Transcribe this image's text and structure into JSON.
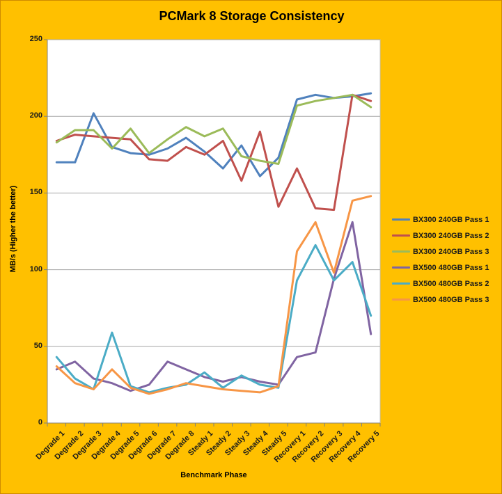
{
  "title": "PCMark 8 Storage Consistency",
  "colors": {
    "background": "#FFC000",
    "plot_background": "#FFFFFF",
    "gridline": "#A6A6A6",
    "axis": "#808080",
    "plot_border": "#BFBFBF",
    "text": "#1a1a1a"
  },
  "chart_data": {
    "type": "line",
    "title": "PCMark 8 Storage Consistency",
    "xlabel": "Benchmark Phase",
    "ylabel": "MB/s (Higher the better)",
    "ylim": [
      0,
      250
    ],
    "y_ticks": [
      0,
      50,
      100,
      150,
      200,
      250
    ],
    "grid": true,
    "legend_position": "right",
    "categories": [
      "Degrade 1",
      "Degrade 2",
      "Degrade 3",
      "Degrade 4",
      "Degrade 5",
      "Degrade 6",
      "Degrade 7",
      "Degrade 8",
      "Steady 1",
      "Steady 2",
      "Steady 3",
      "Steady 4",
      "Steady 5",
      "Recovery 1",
      "Recovery 2",
      "Recovery 3",
      "Recovery 4",
      "Recovery 5"
    ],
    "series": [
      {
        "name": "BX300 240GB Pass 1",
        "color": "#4F81BD",
        "values": [
          170,
          170,
          202,
          180,
          176,
          175,
          179,
          186,
          177,
          166,
          181,
          161,
          173,
          211,
          214,
          212,
          213,
          215
        ]
      },
      {
        "name": "BX300 240GB Pass 2",
        "color": "#C0504D",
        "values": [
          184,
          188,
          187,
          186,
          185,
          172,
          171,
          180,
          175,
          184,
          158,
          190,
          141,
          166,
          140,
          139,
          214,
          210
        ]
      },
      {
        "name": "BX300 240GB Pass 3",
        "color": "#9BBB59",
        "values": [
          183,
          191,
          191,
          179,
          192,
          176,
          185,
          193,
          187,
          192,
          174,
          171,
          169,
          207,
          210,
          212,
          214,
          206
        ]
      },
      {
        "name": "BX500 480GB Pass 1",
        "color": "#8064A2",
        "values": [
          35,
          40,
          29,
          26,
          21,
          25,
          40,
          35,
          30,
          27,
          30,
          27,
          25,
          43,
          46,
          94,
          131,
          58
        ]
      },
      {
        "name": "BX500 480GB Pass 2",
        "color": "#4BACC6",
        "values": [
          43,
          29,
          22,
          59,
          24,
          20,
          23,
          25,
          33,
          23,
          31,
          25,
          23,
          93,
          116,
          93,
          105,
          70
        ]
      },
      {
        "name": "BX500 480GB Pass 3",
        "color": "#F79646",
        "values": [
          37,
          26,
          22,
          35,
          23,
          19,
          22,
          26,
          24,
          22,
          21,
          20,
          24,
          112,
          131,
          98,
          145,
          148
        ]
      }
    ]
  }
}
